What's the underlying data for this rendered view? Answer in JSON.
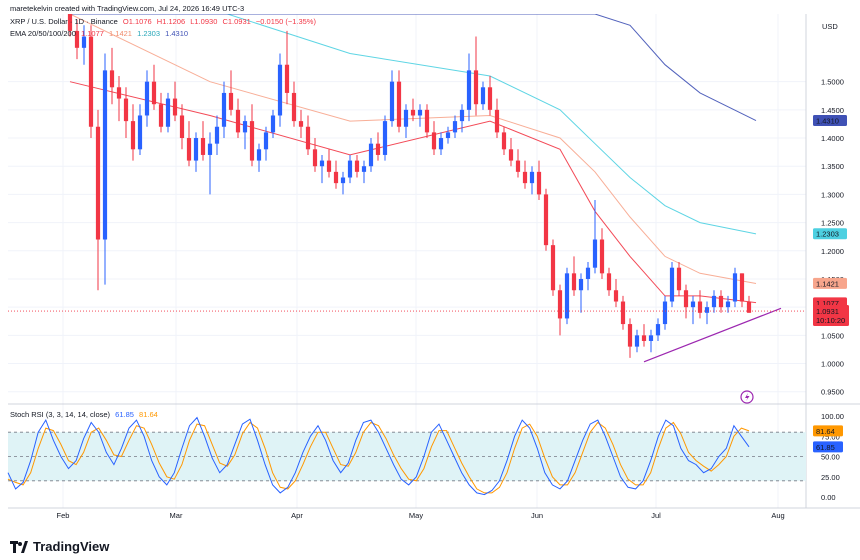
{
  "header": {
    "attribution": "maretekelvin created with TradingView.com, Jul 24, 2026 16:49 UTC-3",
    "symbol_line": "XRP / U.S. Dollar · 1D · Binance",
    "ohlc": {
      "O": "O1.1076",
      "H": "H1.1206",
      "L": "L1.0930",
      "C": "C1.0931",
      "change": "−0.0150 (−1.35%)"
    },
    "ema_title": "EMA 20/50/100/200",
    "ema_values": [
      "1.1077",
      "1.1421",
      "1.2303",
      "1.4310"
    ]
  },
  "rsi_panel": {
    "title": "Stoch RSI (3, 3, 14, 14, close)",
    "k_value": "61.85",
    "d_value": "81.64",
    "axis_ticks": [
      "100.00",
      "75.00",
      "50.00",
      "25.00",
      "0.00"
    ],
    "badges": [
      "81.64",
      "61.85"
    ]
  },
  "price_axis": {
    "currency": "USD",
    "ticks": [
      "1.5000",
      "1.4500",
      "1.4000",
      "1.3500",
      "1.3000",
      "1.2500",
      "1.2000",
      "1.1500",
      "1.1000",
      "1.0500",
      "1.0000",
      "0.9500"
    ],
    "badges": {
      "ema200": "1.4310",
      "ema100": "1.2303",
      "ema50": "1.1421",
      "ema20": "1.1077",
      "last": "1.0931",
      "countdown": "10:10:20"
    }
  },
  "time_axis": {
    "ticks": [
      "Feb",
      "Mar",
      "Apr",
      "May",
      "Jun",
      "Jul",
      "Aug"
    ]
  },
  "brand": {
    "name": "TradingView"
  },
  "colors": {
    "up": "#2962ff",
    "down": "#f23645",
    "ema20": "#f23645",
    "ema50": "#f7a58c",
    "ema100": "#4dd0e1",
    "ema200": "#3f51b5",
    "trendline": "#9c27b0",
    "k": "#2962ff",
    "d": "#ff9800",
    "band": "#dff3f6"
  },
  "chart_data": {
    "type": "candlestick",
    "ylim": [
      0.93,
      1.62
    ],
    "x_date_range": [
      "2026-01-10",
      "2026-07-24"
    ],
    "candles_ohlc": [
      [
        1.62,
        1.63,
        1.58,
        1.59
      ],
      [
        1.59,
        1.61,
        1.54,
        1.56
      ],
      [
        1.56,
        1.6,
        1.53,
        1.58
      ],
      [
        1.58,
        1.6,
        1.4,
        1.42
      ],
      [
        1.42,
        1.45,
        1.13,
        1.22
      ],
      [
        1.22,
        1.55,
        1.14,
        1.52
      ],
      [
        1.52,
        1.56,
        1.46,
        1.49
      ],
      [
        1.49,
        1.51,
        1.43,
        1.47
      ],
      [
        1.47,
        1.49,
        1.4,
        1.43
      ],
      [
        1.43,
        1.46,
        1.36,
        1.38
      ],
      [
        1.38,
        1.46,
        1.37,
        1.44
      ],
      [
        1.44,
        1.52,
        1.42,
        1.5
      ],
      [
        1.5,
        1.53,
        1.45,
        1.46
      ],
      [
        1.46,
        1.48,
        1.41,
        1.42
      ],
      [
        1.42,
        1.48,
        1.41,
        1.47
      ],
      [
        1.47,
        1.5,
        1.43,
        1.44
      ],
      [
        1.44,
        1.46,
        1.38,
        1.4
      ],
      [
        1.4,
        1.43,
        1.35,
        1.36
      ],
      [
        1.36,
        1.41,
        1.34,
        1.4
      ],
      [
        1.4,
        1.43,
        1.36,
        1.37
      ],
      [
        1.37,
        1.41,
        1.3,
        1.39
      ],
      [
        1.39,
        1.44,
        1.37,
        1.42
      ],
      [
        1.42,
        1.5,
        1.4,
        1.48
      ],
      [
        1.48,
        1.52,
        1.44,
        1.45
      ],
      [
        1.45,
        1.47,
        1.4,
        1.41
      ],
      [
        1.41,
        1.44,
        1.38,
        1.43
      ],
      [
        1.43,
        1.46,
        1.35,
        1.36
      ],
      [
        1.36,
        1.39,
        1.34,
        1.38
      ],
      [
        1.38,
        1.42,
        1.36,
        1.41
      ],
      [
        1.41,
        1.45,
        1.4,
        1.44
      ],
      [
        1.44,
        1.55,
        1.42,
        1.53
      ],
      [
        1.53,
        1.59,
        1.46,
        1.48
      ],
      [
        1.48,
        1.5,
        1.42,
        1.43
      ],
      [
        1.43,
        1.45,
        1.4,
        1.42
      ],
      [
        1.42,
        1.44,
        1.37,
        1.38
      ],
      [
        1.38,
        1.4,
        1.34,
        1.35
      ],
      [
        1.35,
        1.37,
        1.32,
        1.36
      ],
      [
        1.36,
        1.38,
        1.33,
        1.34
      ],
      [
        1.34,
        1.36,
        1.31,
        1.32
      ],
      [
        1.32,
        1.34,
        1.3,
        1.33
      ],
      [
        1.33,
        1.37,
        1.32,
        1.36
      ],
      [
        1.36,
        1.37,
        1.33,
        1.34
      ],
      [
        1.34,
        1.36,
        1.32,
        1.35
      ],
      [
        1.35,
        1.4,
        1.34,
        1.39
      ],
      [
        1.39,
        1.41,
        1.36,
        1.37
      ],
      [
        1.37,
        1.44,
        1.36,
        1.43
      ],
      [
        1.43,
        1.52,
        1.42,
        1.5
      ],
      [
        1.5,
        1.52,
        1.41,
        1.42
      ],
      [
        1.42,
        1.46,
        1.4,
        1.45
      ],
      [
        1.45,
        1.47,
        1.43,
        1.44
      ],
      [
        1.44,
        1.46,
        1.42,
        1.45
      ],
      [
        1.45,
        1.46,
        1.4,
        1.41
      ],
      [
        1.41,
        1.43,
        1.37,
        1.38
      ],
      [
        1.38,
        1.41,
        1.37,
        1.4
      ],
      [
        1.4,
        1.42,
        1.39,
        1.41
      ],
      [
        1.41,
        1.44,
        1.4,
        1.43
      ],
      [
        1.43,
        1.46,
        1.41,
        1.45
      ],
      [
        1.45,
        1.55,
        1.43,
        1.52
      ],
      [
        1.52,
        1.58,
        1.44,
        1.46
      ],
      [
        1.46,
        1.5,
        1.45,
        1.49
      ],
      [
        1.49,
        1.51,
        1.44,
        1.45
      ],
      [
        1.45,
        1.47,
        1.4,
        1.41
      ],
      [
        1.41,
        1.42,
        1.37,
        1.38
      ],
      [
        1.38,
        1.4,
        1.35,
        1.36
      ],
      [
        1.36,
        1.38,
        1.33,
        1.34
      ],
      [
        1.34,
        1.36,
        1.31,
        1.32
      ],
      [
        1.32,
        1.35,
        1.3,
        1.34
      ],
      [
        1.34,
        1.36,
        1.29,
        1.3
      ],
      [
        1.3,
        1.31,
        1.2,
        1.21
      ],
      [
        1.21,
        1.22,
        1.12,
        1.13
      ],
      [
        1.13,
        1.14,
        1.05,
        1.08
      ],
      [
        1.08,
        1.17,
        1.07,
        1.16
      ],
      [
        1.16,
        1.19,
        1.12,
        1.13
      ],
      [
        1.13,
        1.16,
        1.09,
        1.15
      ],
      [
        1.15,
        1.18,
        1.13,
        1.17
      ],
      [
        1.17,
        1.29,
        1.16,
        1.22
      ],
      [
        1.22,
        1.24,
        1.15,
        1.16
      ],
      [
        1.16,
        1.17,
        1.12,
        1.13
      ],
      [
        1.13,
        1.15,
        1.1,
        1.11
      ],
      [
        1.11,
        1.12,
        1.06,
        1.07
      ],
      [
        1.07,
        1.08,
        1.01,
        1.03
      ],
      [
        1.03,
        1.06,
        1.02,
        1.05
      ],
      [
        1.05,
        1.07,
        1.03,
        1.04
      ],
      [
        1.04,
        1.06,
        1.02,
        1.05
      ],
      [
        1.05,
        1.08,
        1.04,
        1.07
      ],
      [
        1.07,
        1.12,
        1.06,
        1.11
      ],
      [
        1.11,
        1.18,
        1.1,
        1.17
      ],
      [
        1.17,
        1.18,
        1.12,
        1.13
      ],
      [
        1.13,
        1.14,
        1.08,
        1.1
      ],
      [
        1.1,
        1.12,
        1.07,
        1.11
      ],
      [
        1.11,
        1.13,
        1.08,
        1.09
      ],
      [
        1.09,
        1.11,
        1.07,
        1.1
      ],
      [
        1.1,
        1.13,
        1.09,
        1.12
      ],
      [
        1.12,
        1.13,
        1.09,
        1.1
      ],
      [
        1.1,
        1.12,
        1.09,
        1.11
      ],
      [
        1.11,
        1.17,
        1.1,
        1.16
      ],
      [
        1.16,
        1.16,
        1.1,
        1.11
      ],
      [
        1.11,
        1.12,
        1.09,
        1.09
      ]
    ],
    "ema_series": [
      {
        "label": "20",
        "x": [
          0,
          20,
          40,
          60,
          70,
          75,
          80,
          85,
          90,
          98
        ],
        "y": [
          1.5,
          1.44,
          1.37,
          1.43,
          1.38,
          1.27,
          1.19,
          1.12,
          1.12,
          1.108
        ]
      },
      {
        "label": "50",
        "x": [
          0,
          20,
          40,
          60,
          70,
          75,
          80,
          85,
          90,
          98
        ],
        "y": [
          1.62,
          1.5,
          1.43,
          1.44,
          1.4,
          1.34,
          1.26,
          1.19,
          1.16,
          1.142
        ]
      },
      {
        "label": "100",
        "x": [
          0,
          20,
          40,
          60,
          70,
          75,
          80,
          85,
          90,
          98
        ],
        "y": [
          1.75,
          1.63,
          1.55,
          1.51,
          1.45,
          1.39,
          1.33,
          1.28,
          1.25,
          1.23
        ]
      },
      {
        "label": "200",
        "x": [
          0,
          20,
          40,
          60,
          70,
          75,
          80,
          85,
          90,
          98
        ],
        "y": [
          1.62,
          1.62,
          1.62,
          1.62,
          1.62,
          1.62,
          1.6,
          1.53,
          1.48,
          1.431
        ]
      }
    ],
    "trendline": {
      "x": [
        82,
        99
      ],
      "y": [
        1.003,
        1.098
      ]
    },
    "stoch_k": [
      30,
      10,
      18,
      45,
      80,
      95,
      70,
      50,
      35,
      45,
      72,
      92,
      80,
      55,
      40,
      60,
      85,
      95,
      75,
      45,
      25,
      15,
      30,
      60,
      88,
      98,
      75,
      48,
      30,
      40,
      65,
      90,
      96,
      70,
      40,
      15,
      5,
      12,
      30,
      55,
      75,
      88,
      70,
      45,
      30,
      42,
      70,
      92,
      95,
      80,
      60,
      40,
      22,
      15,
      25,
      50,
      80,
      90,
      70,
      50,
      30,
      15,
      5,
      3,
      8,
      20,
      45,
      75,
      95,
      85,
      60,
      30,
      15,
      10,
      20,
      45,
      70,
      90,
      95,
      75,
      50,
      25,
      12,
      10,
      20,
      45,
      75,
      95,
      88,
      60,
      45,
      40,
      30,
      35,
      50,
      60,
      88,
      75,
      62
    ],
    "stoch_d": [
      22,
      18,
      15,
      30,
      60,
      85,
      82,
      65,
      45,
      40,
      55,
      80,
      85,
      70,
      52,
      50,
      70,
      88,
      85,
      65,
      42,
      25,
      22,
      40,
      70,
      90,
      88,
      65,
      42,
      38,
      52,
      78,
      92,
      85,
      60,
      30,
      12,
      10,
      20,
      40,
      62,
      80,
      80,
      60,
      40,
      38,
      55,
      80,
      92,
      88,
      72,
      52,
      35,
      22,
      20,
      35,
      62,
      82,
      82,
      62,
      42,
      25,
      10,
      5,
      5,
      12,
      30,
      60,
      85,
      90,
      75,
      48,
      25,
      15,
      15,
      30,
      55,
      80,
      92,
      85,
      65,
      40,
      22,
      15,
      15,
      30,
      60,
      85,
      92,
      78,
      55,
      45,
      38,
      32,
      40,
      50,
      75,
      85,
      81.64
    ]
  }
}
